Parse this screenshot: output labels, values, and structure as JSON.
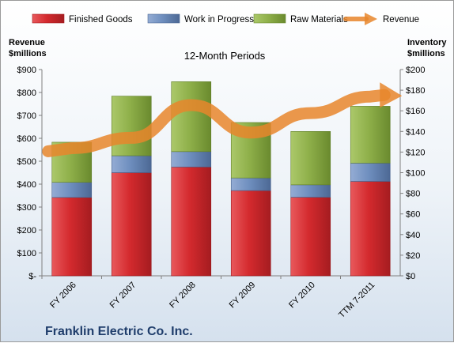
{
  "chart_data": {
    "type": "bar",
    "stacked": true,
    "title": "Franklin Electric Co. Inc.",
    "subtitle": "12-Month Periods",
    "categories": [
      "FY 2006",
      "FY 2007",
      "FY 2008",
      "FY 2009",
      "FY 2010",
      "TTM 7-2011"
    ],
    "series": [
      {
        "name": "Finished Goods",
        "color": "#d42a2e",
        "values": [
          342,
          450,
          475,
          372,
          343,
          412
        ]
      },
      {
        "name": "Work in Progress",
        "color": "#6f8fbf",
        "values": [
          66,
          74,
          67,
          55,
          54,
          80
        ]
      },
      {
        "name": "Raw Materials",
        "color": "#8fb04a",
        "values": [
          175,
          260,
          305,
          242,
          233,
          248
        ]
      }
    ],
    "line_series": {
      "name": "Revenue",
      "color": "#e8862c",
      "values": [
        557,
        602,
        745,
        625,
        710,
        782
      ]
    },
    "left_axis": {
      "label_line1": "Revenue",
      "label_line2": "$millions",
      "ylim": [
        0,
        900
      ],
      "ticks": [
        "$-",
        "$100",
        "$200",
        "$300",
        "$400",
        "$500",
        "$600",
        "$700",
        "$800",
        "$900"
      ]
    },
    "right_axis": {
      "label_line1": "Inventory",
      "label_line2": "$millions",
      "ylim": [
        0,
        200
      ],
      "ticks": [
        "$0",
        "$20",
        "$40",
        "$60",
        "$80",
        "$100",
        "$120",
        "$140",
        "$160",
        "$180",
        "$200"
      ]
    },
    "grid": false,
    "legend_position": "top"
  }
}
